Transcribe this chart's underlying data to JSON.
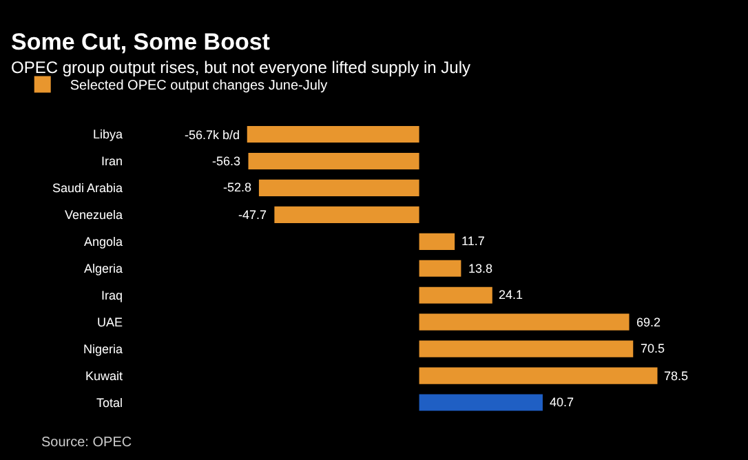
{
  "chart_data": {
    "type": "bar",
    "orientation": "horizontal",
    "title": "Some Cut, Some Boost",
    "subtitle": "OPEC group output rises, but not everyone lifted supply in July",
    "annotations": [
      "Source: OPEC"
    ],
    "categories": [
      "Libya",
      "Iran",
      "Saudi Arabia",
      "Venezuela",
      "Angola",
      "Algeria",
      "Iraq",
      "UAE",
      "Nigeria",
      "Kuwait",
      "Total"
    ],
    "series": [
      {
        "name": "Selected OPEC output changes June-July",
        "color": "#e8962e",
        "colors": [
          null,
          null,
          null,
          null,
          null,
          null,
          null,
          null,
          null,
          null,
          "#1f5fc4"
        ],
        "values": [
          -56.7,
          -56.3,
          -52.8,
          -47.7,
          11.7,
          13.8,
          24.1,
          69.2,
          70.5,
          78.5,
          40.7
        ],
        "value_labels": [
          "-56.7k b/d",
          "-56.3",
          "-52.8",
          "-47.7",
          "11.7",
          "13.8",
          "24.1",
          "69.2",
          "70.5",
          "78.5",
          "40.7"
        ]
      }
    ],
    "legend": "top left"
  }
}
